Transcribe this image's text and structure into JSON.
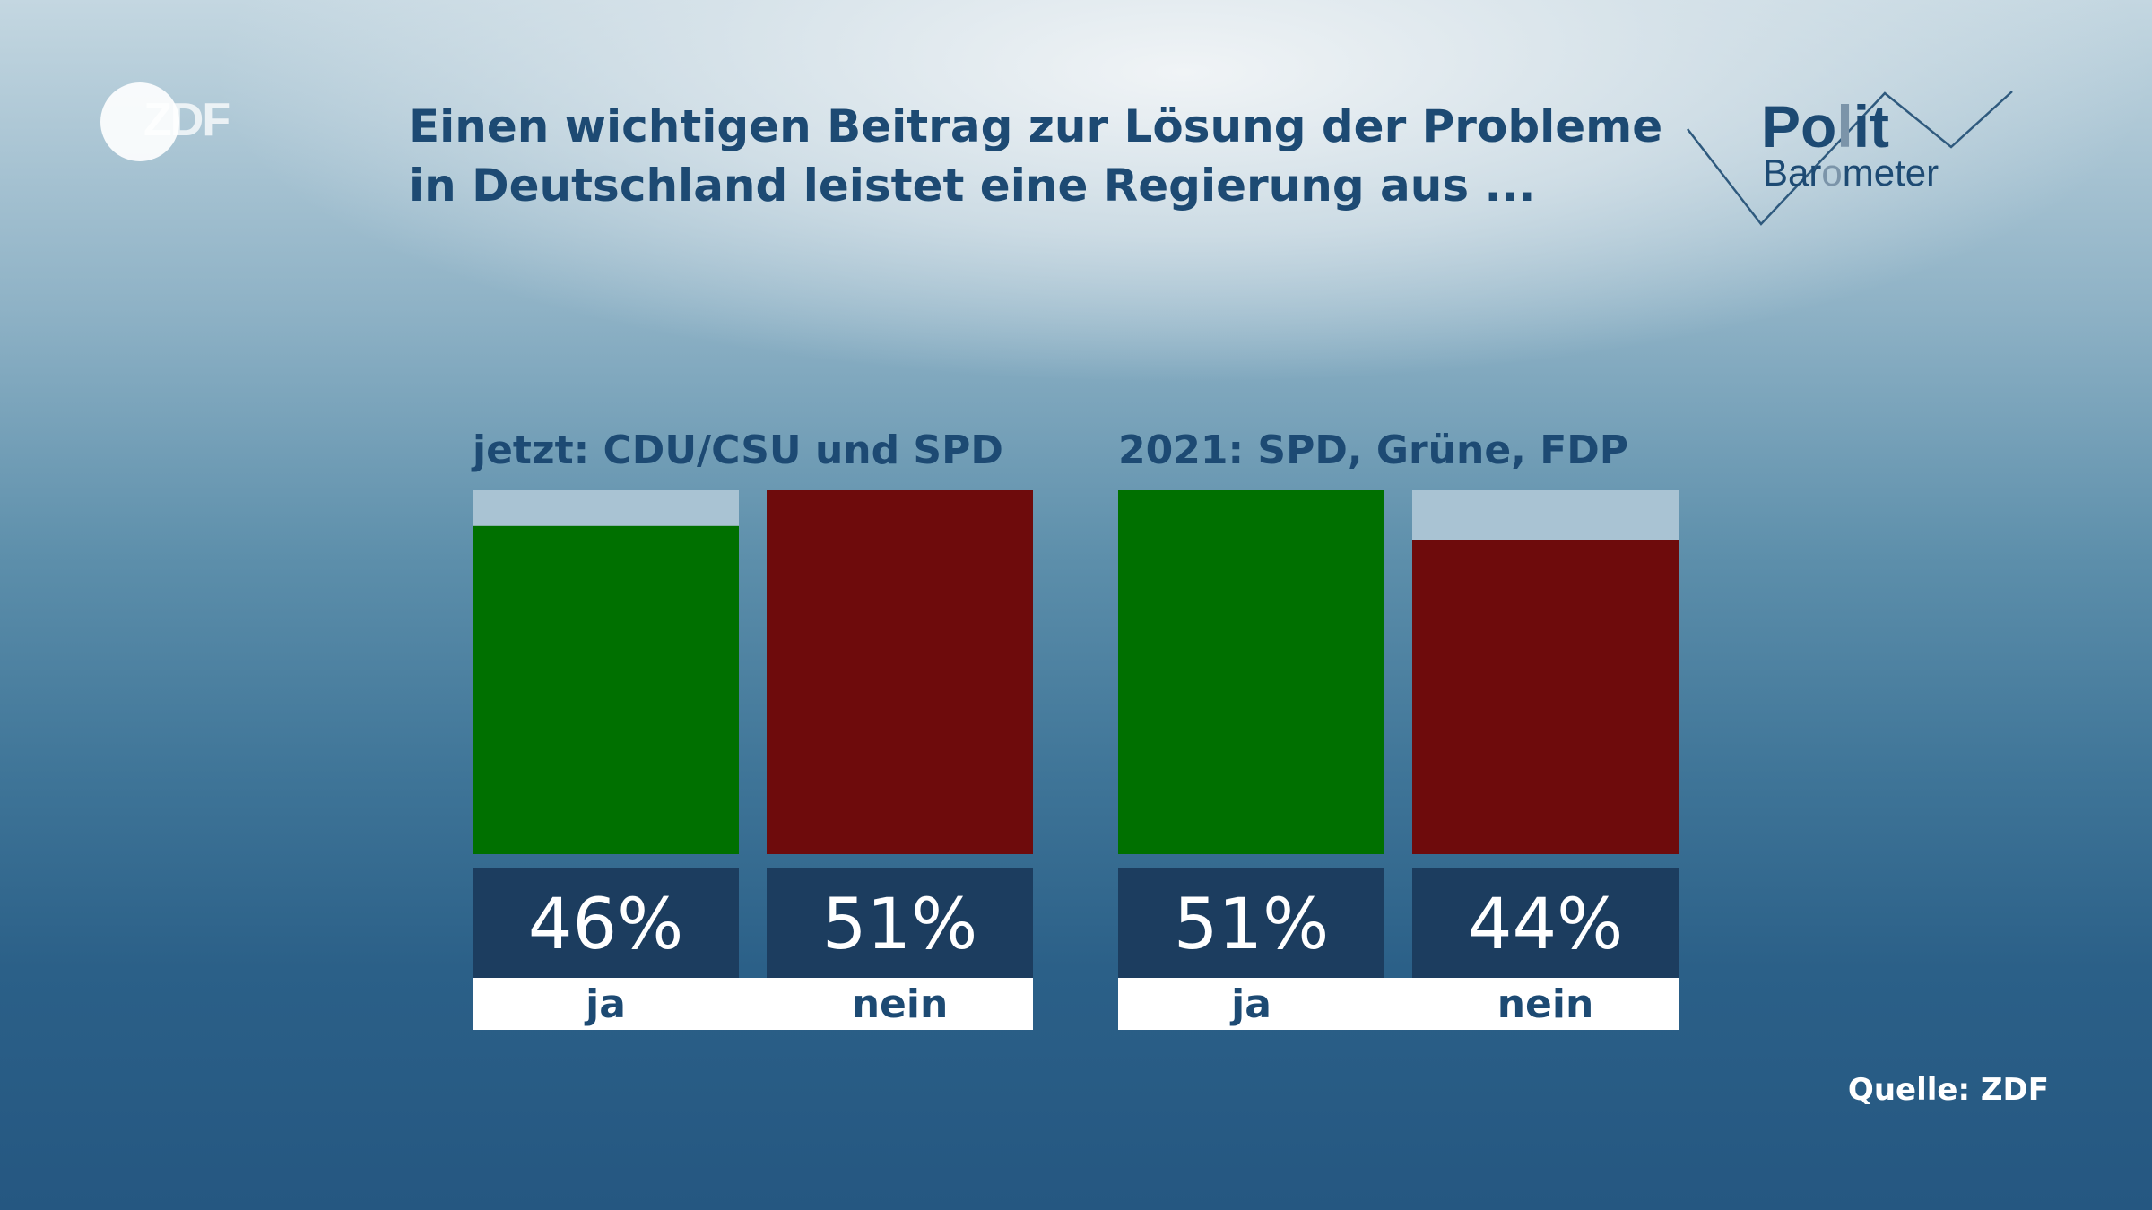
{
  "logo": {
    "text": "ZDF"
  },
  "header": {
    "title_line1": "Einen wichtigen Beitrag zur Lösung der Probleme",
    "title_line2": "in Deutschland leistet eine Regierung aus ..."
  },
  "brand": {
    "polit_prefix": "Po",
    "polit_highlight": "l",
    "polit_suffix": "it",
    "baro_prefix": "Bar",
    "baro_highlight": "o",
    "baro_suffix": "meter"
  },
  "source": "Quelle: ZDF",
  "colors": {
    "ja": "#007000",
    "nein": "#6e0b0c",
    "track": "#a9c3d3",
    "value_box": "#1c3d5f",
    "label_box": "#ffffff",
    "text_dark": "#1d4a73"
  },
  "chart_data": {
    "type": "bar",
    "title": "Einen wichtigen Beitrag zur Lösung der Probleme in Deutschland leistet eine Regierung aus ...",
    "categories": [
      "ja",
      "nein"
    ],
    "ylim": [
      0,
      51
    ],
    "groups": [
      {
        "name": "jetzt: CDU/CSU und SPD",
        "values": [
          46,
          51
        ],
        "value_labels": [
          "46%",
          "51%"
        ]
      },
      {
        "name": "2021: SPD, Grüne, FDP",
        "values": [
          51,
          44
        ],
        "value_labels": [
          "51%",
          "44%"
        ]
      }
    ]
  }
}
